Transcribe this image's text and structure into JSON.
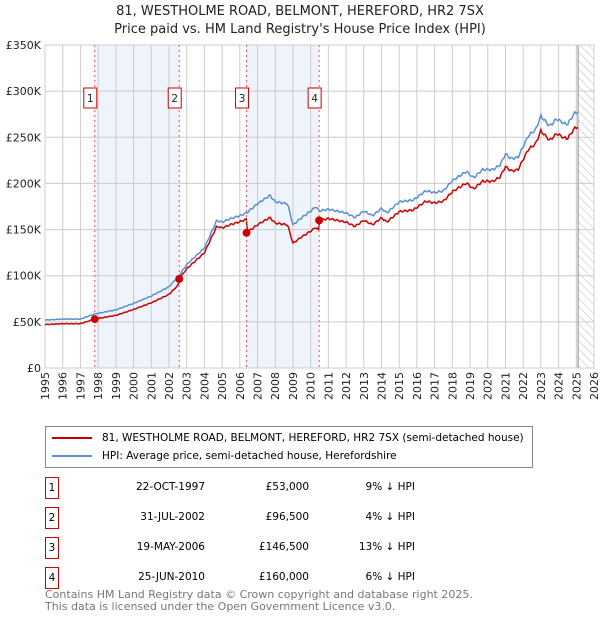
{
  "chart_data": {
    "type": "line",
    "title": "81, WESTHOLME ROAD, BELMONT, HEREFORD, HR2 7SX",
    "subtitle": "Price paid vs. HM Land Registry's House Price Index (HPI)",
    "xlim": [
      1995,
      2026
    ],
    "ylim": [
      0,
      350000
    ],
    "yticks": [
      0,
      50000,
      100000,
      150000,
      200000,
      250000,
      300000,
      350000
    ],
    "ytick_labels": [
      "£0",
      "£50K",
      "£100K",
      "£150K",
      "£200K",
      "£250K",
      "£300K",
      "£350K"
    ],
    "xticks": [
      1995,
      1996,
      1997,
      1998,
      1999,
      2000,
      2001,
      2002,
      2003,
      2004,
      2005,
      2006,
      2007,
      2008,
      2009,
      2010,
      2011,
      2012,
      2013,
      2014,
      2015,
      2016,
      2017,
      2018,
      2019,
      2020,
      2021,
      2022,
      2023,
      2024,
      2025,
      2026
    ],
    "grid": true,
    "forecast_from": 2025.1,
    "shaded_ranges": [
      [
        1997.8,
        2002.58
      ],
      [
        2006.38,
        2010.48
      ]
    ],
    "series": [
      {
        "name": "81, WESTHOLME ROAD, BELMONT, HEREFORD, HR2 7SX (semi-detached house)",
        "color": "#cc0000",
        "derived_from_hpi": true
      },
      {
        "name": "HPI: Average price, semi-detached house, Herefordshire",
        "color": "#5b8fd4",
        "x": [
          1995,
          1996,
          1997,
          1997.8,
          1999,
          2000,
          2001,
          2002,
          2002.58,
          2003,
          2004,
          2004.7,
          2005,
          2005.5,
          2006,
          2006.38,
          2007,
          2007.7,
          2008,
          2008.7,
          2009,
          2009.5,
          2010,
          2010.3,
          2010.48,
          2011,
          2012,
          2012.5,
          2013,
          2013.5,
          2014,
          2014.3,
          2015,
          2015.8,
          2016.5,
          2017,
          2017.5,
          2018,
          2018.8,
          2019.2,
          2019.7,
          2020.3,
          2020.7,
          2021,
          2021.3,
          2021.7,
          2022.3,
          2022.7,
          2023,
          2023.5,
          2023.9,
          2024.3,
          2024.5,
          2024.9,
          2025.1
        ],
        "y": [
          52000,
          53000,
          53000,
          58500,
          63000,
          70000,
          78000,
          88000,
          100500,
          112000,
          130000,
          160000,
          158000,
          162000,
          165000,
          168000,
          178000,
          187000,
          180000,
          178000,
          155000,
          163000,
          170000,
          175000,
          170000,
          172000,
          168000,
          163000,
          170000,
          165000,
          173000,
          168000,
          180000,
          182000,
          192000,
          190000,
          192000,
          203000,
          213000,
          206000,
          215000,
          215000,
          220000,
          232000,
          227000,
          228000,
          252000,
          258000,
          273000,
          262000,
          270000,
          265000,
          264000,
          276000,
          278000
        ]
      }
    ],
    "sales": [
      {
        "id": "1",
        "year": 1997.81,
        "date": "22-OCT-1997",
        "price": 53000,
        "price_label": "£53,000",
        "hpi_label": "9% ↓ HPI"
      },
      {
        "id": "2",
        "year": 2002.58,
        "date": "31-JUL-2002",
        "price": 96500,
        "price_label": "£96,500",
        "hpi_label": "4% ↓ HPI"
      },
      {
        "id": "3",
        "year": 2006.38,
        "date": "19-MAY-2006",
        "price": 146500,
        "price_label": "£146,500",
        "hpi_label": "13% ↓ HPI"
      },
      {
        "id": "4",
        "year": 2010.48,
        "date": "25-JUN-2010",
        "price": 160000,
        "price_label": "£160,000",
        "hpi_label": "6% ↓ HPI"
      }
    ]
  },
  "legend": {
    "red": "81, WESTHOLME ROAD, BELMONT, HEREFORD, HR2 7SX (semi-detached house)",
    "blue": "HPI: Average price, semi-detached house, Herefordshire"
  },
  "footer": {
    "line1": "Contains HM Land Registry data © Crown copyright and database right 2025.",
    "line2": "This data is licensed under the Open Government Licence v3.0."
  }
}
